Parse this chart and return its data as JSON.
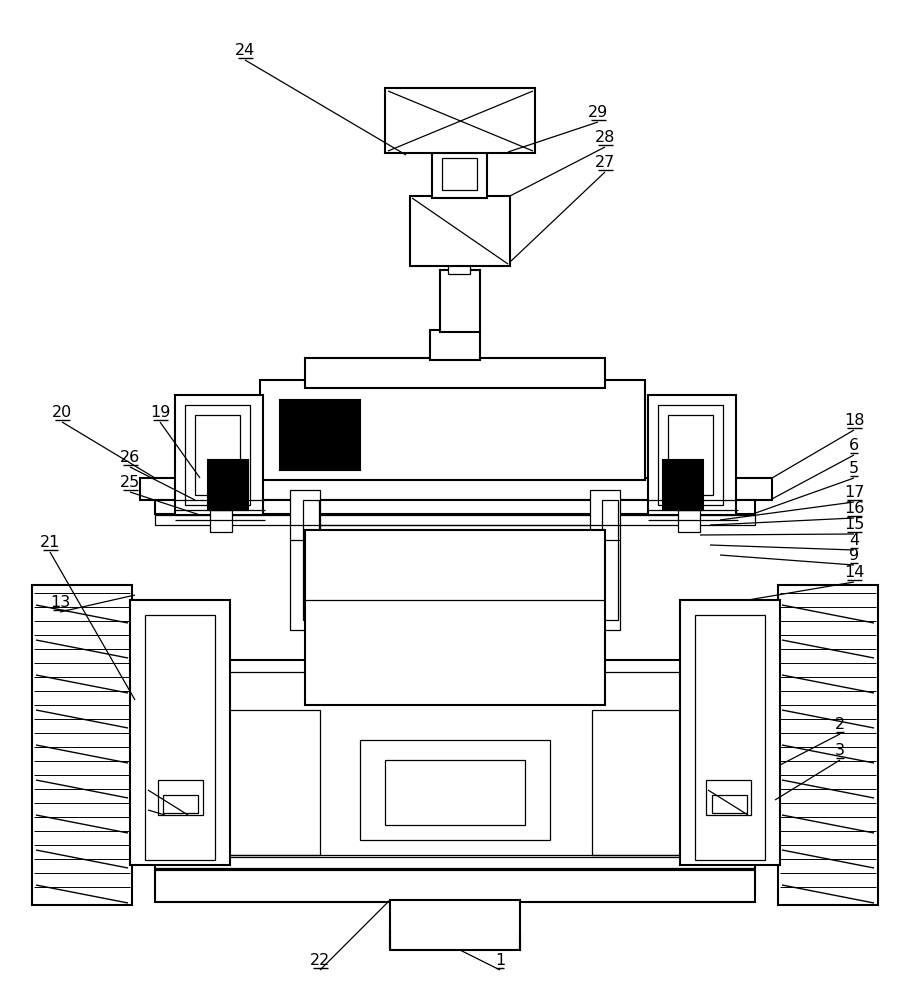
{
  "bg_color": "#ffffff",
  "fig_width": 9.11,
  "fig_height": 10.0,
  "dpi": 100
}
